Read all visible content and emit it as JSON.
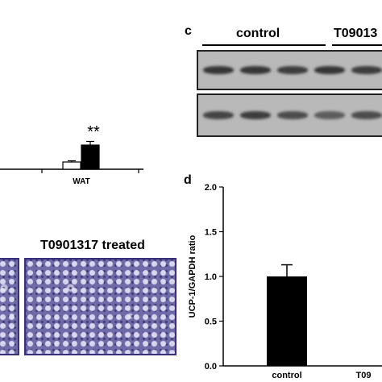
{
  "panel_c": {
    "letter": "c",
    "group_labels": [
      "control",
      "T09013"
    ],
    "bands_top": [
      {
        "lane": 1,
        "intensity": 0.85
      },
      {
        "lane": 2,
        "intensity": 0.85
      },
      {
        "lane": 3,
        "intensity": 0.8
      },
      {
        "lane": 4,
        "intensity": 0.85
      },
      {
        "lane": 5,
        "intensity": 0.8
      }
    ],
    "bands_bottom": [
      {
        "lane": 1,
        "intensity": 0.75
      },
      {
        "lane": 2,
        "intensity": 0.8
      },
      {
        "lane": 3,
        "intensity": 0.7
      },
      {
        "lane": 4,
        "intensity": 0.6
      },
      {
        "lane": 5,
        "intensity": 0.7
      }
    ],
    "colors": {
      "background": "#b9b9b9",
      "band": "#2a2a2a"
    }
  },
  "panel_b_partial": {
    "category": "WAT",
    "significance": "**",
    "bars": [
      {
        "series": "control",
        "color": "#ffffff",
        "value": 0.3,
        "error": 0.05
      },
      {
        "series": "treated",
        "color": "#000000",
        "value": 1.0,
        "error": 0.15
      }
    ]
  },
  "panel_micrographs": {
    "treated_label": "T0901317 treated",
    "stain_color": "#6f6aa8"
  },
  "chart_data": {
    "type": "bar",
    "panel_letter": "d",
    "title": "",
    "xlabel": "",
    "ylabel": "UCP-1/GAPDH ratio",
    "categories": [
      "control",
      "T09"
    ],
    "series": [
      {
        "values": [
          1.0,
          null
        ],
        "errors": [
          0.13,
          null
        ],
        "color": "#000000"
      }
    ],
    "ylim": [
      0.0,
      2.0
    ],
    "yticks": [
      "0.0",
      "0.5",
      "1.0",
      "1.5",
      "2.0"
    ],
    "grid": false
  }
}
